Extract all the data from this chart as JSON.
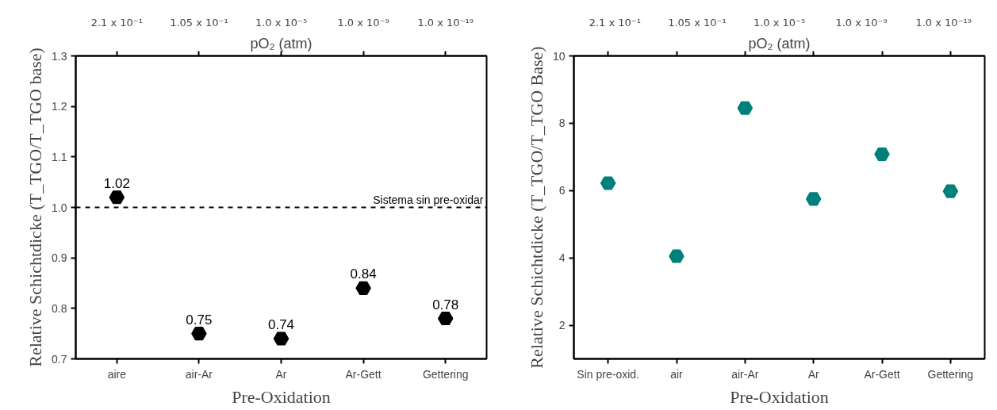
{
  "chart_data": [
    {
      "type": "scatter",
      "xlabel": "Pre-Oxidation",
      "ylabel": "Relative Schichtdicke (T_TGO/T_TGO base)",
      "x2label": "pO₂ (atm)",
      "categories": [
        "aire",
        "air-Ar",
        "Ar",
        "Ar-Gett",
        "Gettering"
      ],
      "series": [
        {
          "color": "#000000",
          "values": [
            1.02,
            0.75,
            0.74,
            0.84,
            0.78
          ]
        }
      ],
      "data_labels": true,
      "ylim": [
        0.7,
        1.3
      ],
      "yticks": [
        0.7,
        0.8,
        0.9,
        {
          "value": 1,
          "label": "1.0"
        },
        1.1,
        1.2,
        1.3
      ],
      "annotations": [
        "2.1 x 10⁻¹",
        "1.05 x 10⁻¹",
        "1.0 x 10⁻⁵",
        "1.0 x 10⁻⁹",
        "1.0 x 10⁻¹⁹"
      ],
      "ref_lines": [
        {
          "axis": "y",
          "value": 1.0,
          "label": "Sistema sin pre-oxidar",
          "color": "#000000",
          "line_style": "dashed"
        }
      ],
      "grid": false,
      "legend": false
    },
    {
      "type": "scatter",
      "xlabel": "Pre-Oxidation",
      "ylabel": "Relative Schichtdicke (T_TGO/T_TGO Base)",
      "x2label": "pO₂ (atm)",
      "categories": [
        "Sin pre-oxid.",
        "air",
        "air-Ar",
        "Ar",
        "Ar-Gett",
        "Gettering"
      ],
      "series": [
        {
          "color": "#00807a",
          "values": [
            6.22,
            4.05,
            8.45,
            5.75,
            7.08,
            5.98
          ]
        }
      ],
      "ylim": [
        1,
        10
      ],
      "yticks": [
        2,
        4,
        6,
        8,
        10
      ],
      "annotations": [
        "2.1 x 10⁻¹",
        "1.05 x 10⁻¹",
        "1.0 x 10⁻⁵",
        "1.0 x 10⁻⁹",
        "1.0 x 10⁻¹⁹"
      ],
      "grid": false,
      "legend": false
    }
  ]
}
